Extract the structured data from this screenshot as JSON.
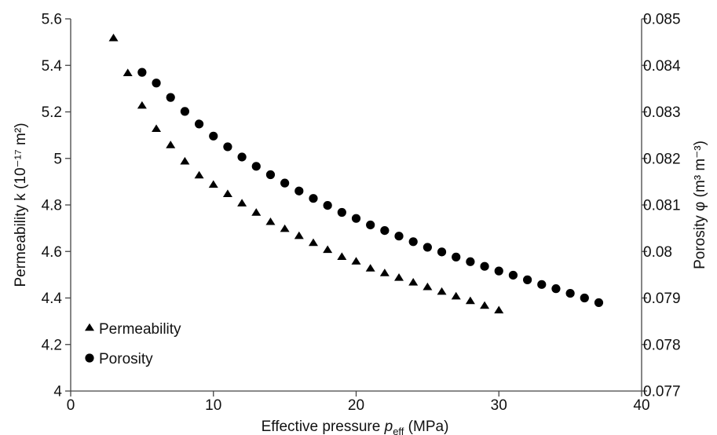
{
  "chart_data": {
    "type": "scatter",
    "title": "",
    "x": {
      "label_prefix": "Effective pressure ",
      "label_var": "p",
      "label_sub": "eff",
      "label_suffix": " (MPa)",
      "lim": [
        0,
        40
      ],
      "ticks": [
        0,
        10,
        20,
        30,
        40
      ],
      "tick_labels": [
        "0",
        "10",
        "20",
        "30",
        "40"
      ]
    },
    "y_left": {
      "label": "Permeability k (10⁻¹⁷ m²)",
      "lim": [
        4.0,
        5.6
      ],
      "ticks": [
        4.0,
        4.2,
        4.4,
        4.6,
        4.8,
        5.0,
        5.2,
        5.4,
        5.6
      ],
      "tick_labels": [
        "4",
        "4.2",
        "4.4",
        "4.6",
        "4.8",
        "5",
        "5.2",
        "5.4",
        "5.6"
      ]
    },
    "y_right": {
      "label": "Porosity φ (m³ m⁻³)",
      "lim": [
        0.077,
        0.085
      ],
      "ticks": [
        0.077,
        0.078,
        0.079,
        0.08,
        0.081,
        0.082,
        0.083,
        0.084,
        0.085
      ],
      "tick_labels": [
        "0.077",
        "0.078",
        "0.079",
        "0.08",
        "0.081",
        "0.082",
        "0.083",
        "0.084",
        "0.085"
      ]
    },
    "grid": false,
    "legend_position": "bottom-left",
    "series": [
      {
        "name": "Permeability",
        "axis": "left",
        "marker": "triangle",
        "color": "#000000",
        "x": [
          3,
          4,
          5,
          6,
          7,
          8,
          9,
          10,
          11,
          12,
          13,
          14,
          15,
          16,
          17,
          18,
          19,
          20,
          21,
          22,
          23,
          24,
          25,
          26,
          27,
          28,
          29,
          30
        ],
        "y": [
          5.52,
          5.37,
          5.23,
          5.13,
          5.06,
          4.99,
          4.93,
          4.89,
          4.85,
          4.81,
          4.77,
          4.73,
          4.7,
          4.67,
          4.64,
          4.61,
          4.58,
          4.56,
          4.53,
          4.51,
          4.49,
          4.47,
          4.45,
          4.43,
          4.41,
          4.39,
          4.37,
          4.35
        ]
      },
      {
        "name": "Porosity",
        "axis": "right",
        "marker": "circle",
        "color": "#000000",
        "x": [
          5,
          6,
          7,
          8,
          9,
          10,
          11,
          12,
          13,
          14,
          15,
          16,
          17,
          18,
          19,
          20,
          21,
          22,
          23,
          24,
          25,
          26,
          27,
          28,
          29,
          30,
          31,
          32,
          33,
          34,
          35,
          36,
          37
        ],
        "y": [
          0.08385,
          0.08362,
          0.08331,
          0.08301,
          0.08274,
          0.08248,
          0.08225,
          0.08203,
          0.08183,
          0.08165,
          0.08147,
          0.0813,
          0.08114,
          0.08099,
          0.08084,
          0.08071,
          0.08057,
          0.08045,
          0.08033,
          0.08021,
          0.08009,
          0.07999,
          0.07988,
          0.07978,
          0.07968,
          0.07958,
          0.07949,
          0.07939,
          0.07929,
          0.0792,
          0.0791,
          0.079,
          0.0789
        ]
      }
    ]
  }
}
